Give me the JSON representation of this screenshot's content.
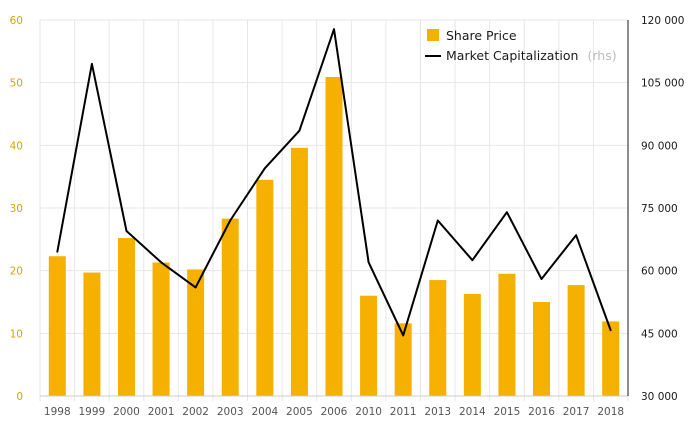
{
  "colors": {
    "bar": "#F5B000",
    "line": "#000000",
    "grid": "#e6e6e6",
    "left_axis_text": "#D9A400",
    "right_axis_text": "#1A1A1A"
  },
  "chart_data": {
    "type": "bar",
    "categories": [
      "1998",
      "1999",
      "2000",
      "2001",
      "2002",
      "2003",
      "2004",
      "2005",
      "2006",
      "2010",
      "2011",
      "2013",
      "2014",
      "2015",
      "2016",
      "2017",
      "2018"
    ],
    "series": [
      {
        "name": "Share Price",
        "type": "bar",
        "axis": "left",
        "values": [
          22.3,
          19.7,
          25.2,
          21.3,
          20.2,
          28.3,
          34.5,
          39.6,
          50.9,
          16.0,
          11.6,
          18.5,
          16.3,
          19.5,
          15.0,
          17.7,
          11.9
        ]
      },
      {
        "name": "Market Capitalization",
        "type": "line",
        "axis": "right",
        "values": [
          64500,
          109500,
          69500,
          62000,
          56000,
          72000,
          84500,
          93500,
          117800,
          62000,
          44500,
          72000,
          62500,
          74000,
          58000,
          68500,
          45700
        ]
      }
    ],
    "legend": {
      "bar_label": "Share Price",
      "line_label": "Market Capitalization",
      "line_suffix": "(rhs)",
      "position": "top-right"
    },
    "left_axis": {
      "min": 0,
      "max": 60,
      "ticks": [
        "0",
        "10",
        "20",
        "30",
        "40",
        "50",
        "60"
      ]
    },
    "right_axis": {
      "min": 30000,
      "max": 120000,
      "ticks": [
        "30 000",
        "45 000",
        "60 000",
        "75 000",
        "90 000",
        "105 000",
        "120 000"
      ]
    },
    "grid": true
  }
}
